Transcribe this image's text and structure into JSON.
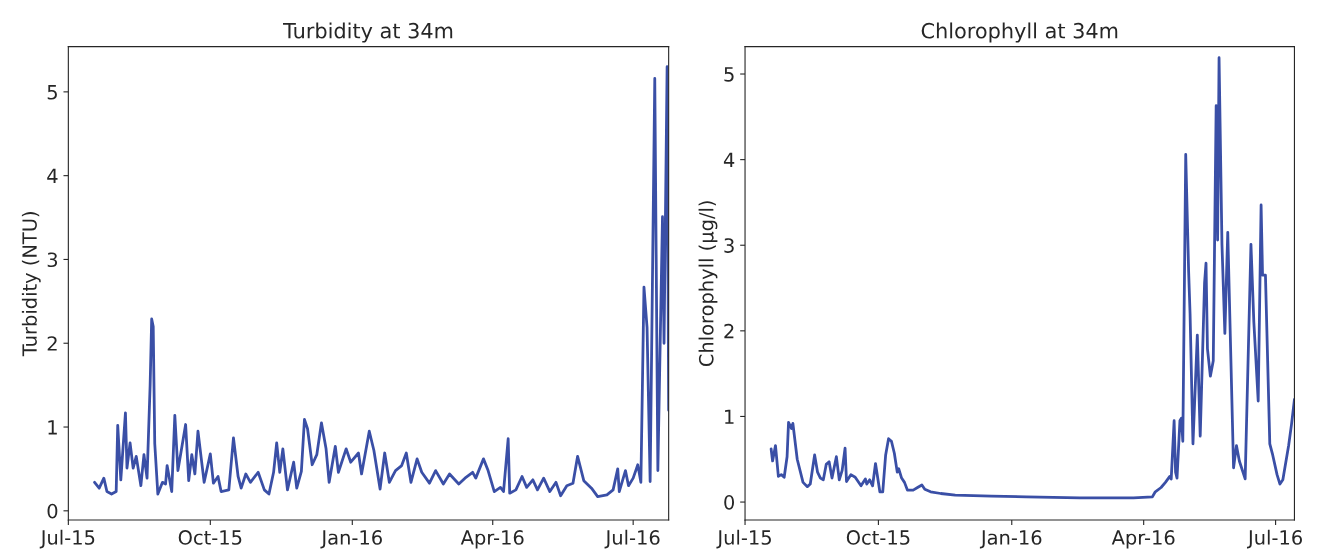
{
  "chart_data": [
    {
      "type": "line",
      "title": "Turbidity at 34m",
      "ylabel": "Turbidity (NTU)",
      "xlim": [
        "2015-07-01",
        "2016-07-24"
      ],
      "xticks": [
        {
          "value": "2015-07-01",
          "label": "Jul-15"
        },
        {
          "value": "2015-10-01",
          "label": "Oct-15"
        },
        {
          "value": "2016-01-01",
          "label": "Jan-16"
        },
        {
          "value": "2016-04-01",
          "label": "Apr-16"
        },
        {
          "value": "2016-07-01",
          "label": "Jul-16"
        }
      ],
      "ylim": [
        -0.11,
        5.54
      ],
      "yticks": [
        0,
        1,
        2,
        3,
        4,
        5
      ],
      "series": [
        {
          "color": "#3a4fa6",
          "x": [
            "2015-07-18",
            "2015-07-21",
            "2015-07-24",
            "2015-07-26",
            "2015-07-29",
            "2015-08-01",
            "2015-08-02",
            "2015-08-04",
            "2015-08-07",
            "2015-08-08",
            "2015-08-10",
            "2015-08-12",
            "2015-08-14",
            "2015-08-17",
            "2015-08-19",
            "2015-08-21",
            "2015-08-23",
            "2015-08-24",
            "2015-08-25",
            "2015-08-26",
            "2015-08-28",
            "2015-08-31",
            "2015-09-02",
            "2015-09-03",
            "2015-09-06",
            "2015-09-08",
            "2015-09-10",
            "2015-09-15",
            "2015-09-17",
            "2015-09-19",
            "2015-09-21",
            "2015-09-23",
            "2015-09-27",
            "2015-10-01",
            "2015-10-03",
            "2015-10-06",
            "2015-10-08",
            "2015-10-13",
            "2015-10-16",
            "2015-10-19",
            "2015-10-21",
            "2015-10-24",
            "2015-10-27",
            "2015-11-01",
            "2015-11-05",
            "2015-11-08",
            "2015-11-11",
            "2015-11-13",
            "2015-11-15",
            "2015-11-17",
            "2015-11-20",
            "2015-11-24",
            "2015-11-26",
            "2015-11-29",
            "2015-12-01",
            "2015-12-03",
            "2015-12-06",
            "2015-12-09",
            "2015-12-12",
            "2015-12-15",
            "2015-12-17",
            "2015-12-21",
            "2015-12-23",
            "2015-12-28",
            "2015-12-31",
            "2016-01-05",
            "2016-01-07",
            "2016-01-12",
            "2016-01-15",
            "2016-01-19",
            "2016-01-22",
            "2016-01-25",
            "2016-01-29",
            "2016-02-02",
            "2016-02-05",
            "2016-02-08",
            "2016-02-12",
            "2016-02-15",
            "2016-02-20",
            "2016-02-24",
            "2016-02-29",
            "2016-03-04",
            "2016-03-10",
            "2016-03-14",
            "2016-03-19",
            "2016-03-21",
            "2016-03-26",
            "2016-03-29",
            "2016-04-02",
            "2016-04-06",
            "2016-04-08",
            "2016-04-11",
            "2016-04-12",
            "2016-04-16",
            "2016-04-20",
            "2016-04-23",
            "2016-04-27",
            "2016-04-30",
            "2016-05-04",
            "2016-05-08",
            "2016-05-12",
            "2016-05-15",
            "2016-05-19",
            "2016-05-23",
            "2016-05-26",
            "2016-05-30",
            "2016-06-04",
            "2016-06-08",
            "2016-06-14",
            "2016-06-18",
            "2016-06-21",
            "2016-06-22",
            "2016-06-26",
            "2016-06-28",
            "2016-07-01",
            "2016-07-04",
            "2016-07-06",
            "2016-07-08",
            "2016-07-10",
            "2016-07-12",
            "2016-07-15",
            "2016-07-17",
            "2016-07-20",
            "2016-07-21",
            "2016-07-23",
            "2016-07-24"
          ],
          "values": [
            0.34,
            0.27,
            0.39,
            0.23,
            0.2,
            0.23,
            1.02,
            0.37,
            1.17,
            0.51,
            0.81,
            0.51,
            0.65,
            0.3,
            0.67,
            0.39,
            1.5,
            2.29,
            2.2,
            0.8,
            0.2,
            0.34,
            0.32,
            0.54,
            0.23,
            1.14,
            0.48,
            1.03,
            0.36,
            0.67,
            0.44,
            0.95,
            0.34,
            0.68,
            0.33,
            0.41,
            0.23,
            0.25,
            0.87,
            0.41,
            0.27,
            0.44,
            0.34,
            0.46,
            0.25,
            0.2,
            0.46,
            0.81,
            0.46,
            0.74,
            0.25,
            0.58,
            0.27,
            0.47,
            1.09,
            0.98,
            0.55,
            0.67,
            1.05,
            0.74,
            0.34,
            0.77,
            0.46,
            0.74,
            0.58,
            0.69,
            0.44,
            0.95,
            0.72,
            0.26,
            0.69,
            0.34,
            0.48,
            0.54,
            0.69,
            0.34,
            0.62,
            0.46,
            0.33,
            0.48,
            0.32,
            0.44,
            0.32,
            0.39,
            0.46,
            0.39,
            0.62,
            0.48,
            0.23,
            0.28,
            0.23,
            0.86,
            0.21,
            0.25,
            0.41,
            0.28,
            0.37,
            0.25,
            0.39,
            0.23,
            0.34,
            0.18,
            0.3,
            0.33,
            0.65,
            0.36,
            0.27,
            0.17,
            0.19,
            0.25,
            0.5,
            0.23,
            0.48,
            0.3,
            0.39,
            0.55,
            0.34,
            2.67,
            2.19,
            0.35,
            5.16,
            0.48,
            3.51,
            2.0,
            5.3,
            1.2
          ]
        }
      ]
    },
    {
      "type": "line",
      "title": "Chlorophyll at 34m",
      "ylabel": "Chlorophyll (µg/l)",
      "xlim": [
        "2015-07-01",
        "2016-07-14"
      ],
      "xticks": [
        {
          "value": "2015-07-01",
          "label": "Jul-15"
        },
        {
          "value": "2015-10-01",
          "label": "Oct-15"
        },
        {
          "value": "2016-01-01",
          "label": "Jan-16"
        },
        {
          "value": "2016-04-01",
          "label": "Apr-16"
        },
        {
          "value": "2016-07-01",
          "label": "Jul-16"
        }
      ],
      "ylim": [
        -0.21,
        5.32
      ],
      "yticks": [
        0,
        1,
        2,
        3,
        4,
        5
      ],
      "series": [
        {
          "color": "#3a4fa6",
          "x": [
            "2015-07-19",
            "2015-07-20",
            "2015-07-22",
            "2015-07-24",
            "2015-07-26",
            "2015-07-28",
            "2015-07-30",
            "2015-07-31",
            "2015-08-02",
            "2015-08-03",
            "2015-08-06",
            "2015-08-10",
            "2015-08-13",
            "2015-08-15",
            "2015-08-18",
            "2015-08-20",
            "2015-08-22",
            "2015-08-24",
            "2015-08-26",
            "2015-08-28",
            "2015-08-30",
            "2015-09-02",
            "2015-09-04",
            "2015-09-06",
            "2015-09-08",
            "2015-09-09",
            "2015-09-12",
            "2015-09-15",
            "2015-09-19",
            "2015-09-22",
            "2015-09-23",
            "2015-09-25",
            "2015-09-27",
            "2015-09-29",
            "2015-10-02",
            "2015-10-04",
            "2015-10-06",
            "2015-10-08",
            "2015-10-10",
            "2015-10-12",
            "2015-10-14",
            "2015-10-15",
            "2015-10-17",
            "2015-10-19",
            "2015-10-21",
            "2015-10-25",
            "2015-10-28",
            "2015-10-31",
            "2015-11-02",
            "2015-11-06",
            "2015-11-13",
            "2015-11-23",
            "2015-12-18",
            "2016-01-11",
            "2016-02-17",
            "2016-03-25",
            "2016-04-07",
            "2016-04-09",
            "2016-04-13",
            "2016-04-16",
            "2016-04-19",
            "2016-04-20",
            "2016-04-22",
            "2016-04-23",
            "2016-04-24",
            "2016-04-26",
            "2016-04-27",
            "2016-04-28",
            "2016-04-30",
            "2016-05-02",
            "2016-05-03",
            "2016-05-05",
            "2016-05-08",
            "2016-05-10",
            "2016-05-13",
            "2016-05-14",
            "2016-05-15",
            "2016-05-17",
            "2016-05-19",
            "2016-05-21",
            "2016-05-22",
            "2016-05-23",
            "2016-05-25",
            "2016-05-27",
            "2016-05-29",
            "2016-06-02",
            "2016-06-04",
            "2016-06-06",
            "2016-06-10",
            "2016-06-14",
            "2016-06-16",
            "2016-06-19",
            "2016-06-21",
            "2016-06-22",
            "2016-06-24",
            "2016-06-27",
            "2016-06-29",
            "2016-07-02",
            "2016-07-04",
            "2016-07-06",
            "2016-07-10",
            "2016-07-12",
            "2016-07-14"
          ],
          "values": [
            0.62,
            0.48,
            0.66,
            0.3,
            0.32,
            0.29,
            0.53,
            0.93,
            0.86,
            0.92,
            0.5,
            0.23,
            0.18,
            0.21,
            0.55,
            0.35,
            0.28,
            0.26,
            0.44,
            0.47,
            0.28,
            0.53,
            0.26,
            0.37,
            0.63,
            0.24,
            0.32,
            0.29,
            0.19,
            0.27,
            0.21,
            0.26,
            0.19,
            0.45,
            0.12,
            0.12,
            0.55,
            0.74,
            0.71,
            0.57,
            0.35,
            0.39,
            0.28,
            0.23,
            0.14,
            0.14,
            0.17,
            0.2,
            0.15,
            0.12,
            0.1,
            0.08,
            0.07,
            0.06,
            0.05,
            0.05,
            0.06,
            0.12,
            0.17,
            0.23,
            0.3,
            0.27,
            0.95,
            0.35,
            0.28,
            0.95,
            0.98,
            0.71,
            4.06,
            2.7,
            2.2,
            0.68,
            1.95,
            0.77,
            2.56,
            2.79,
            1.79,
            1.47,
            1.65,
            4.63,
            3.06,
            5.19,
            3.01,
            1.97,
            3.15,
            0.4,
            0.66,
            0.48,
            0.27,
            3.01,
            2.1,
            1.18,
            3.47,
            2.65,
            2.65,
            0.68,
            0.55,
            0.32,
            0.21,
            0.26,
            0.66,
            0.91,
            1.2
          ]
        }
      ]
    }
  ]
}
